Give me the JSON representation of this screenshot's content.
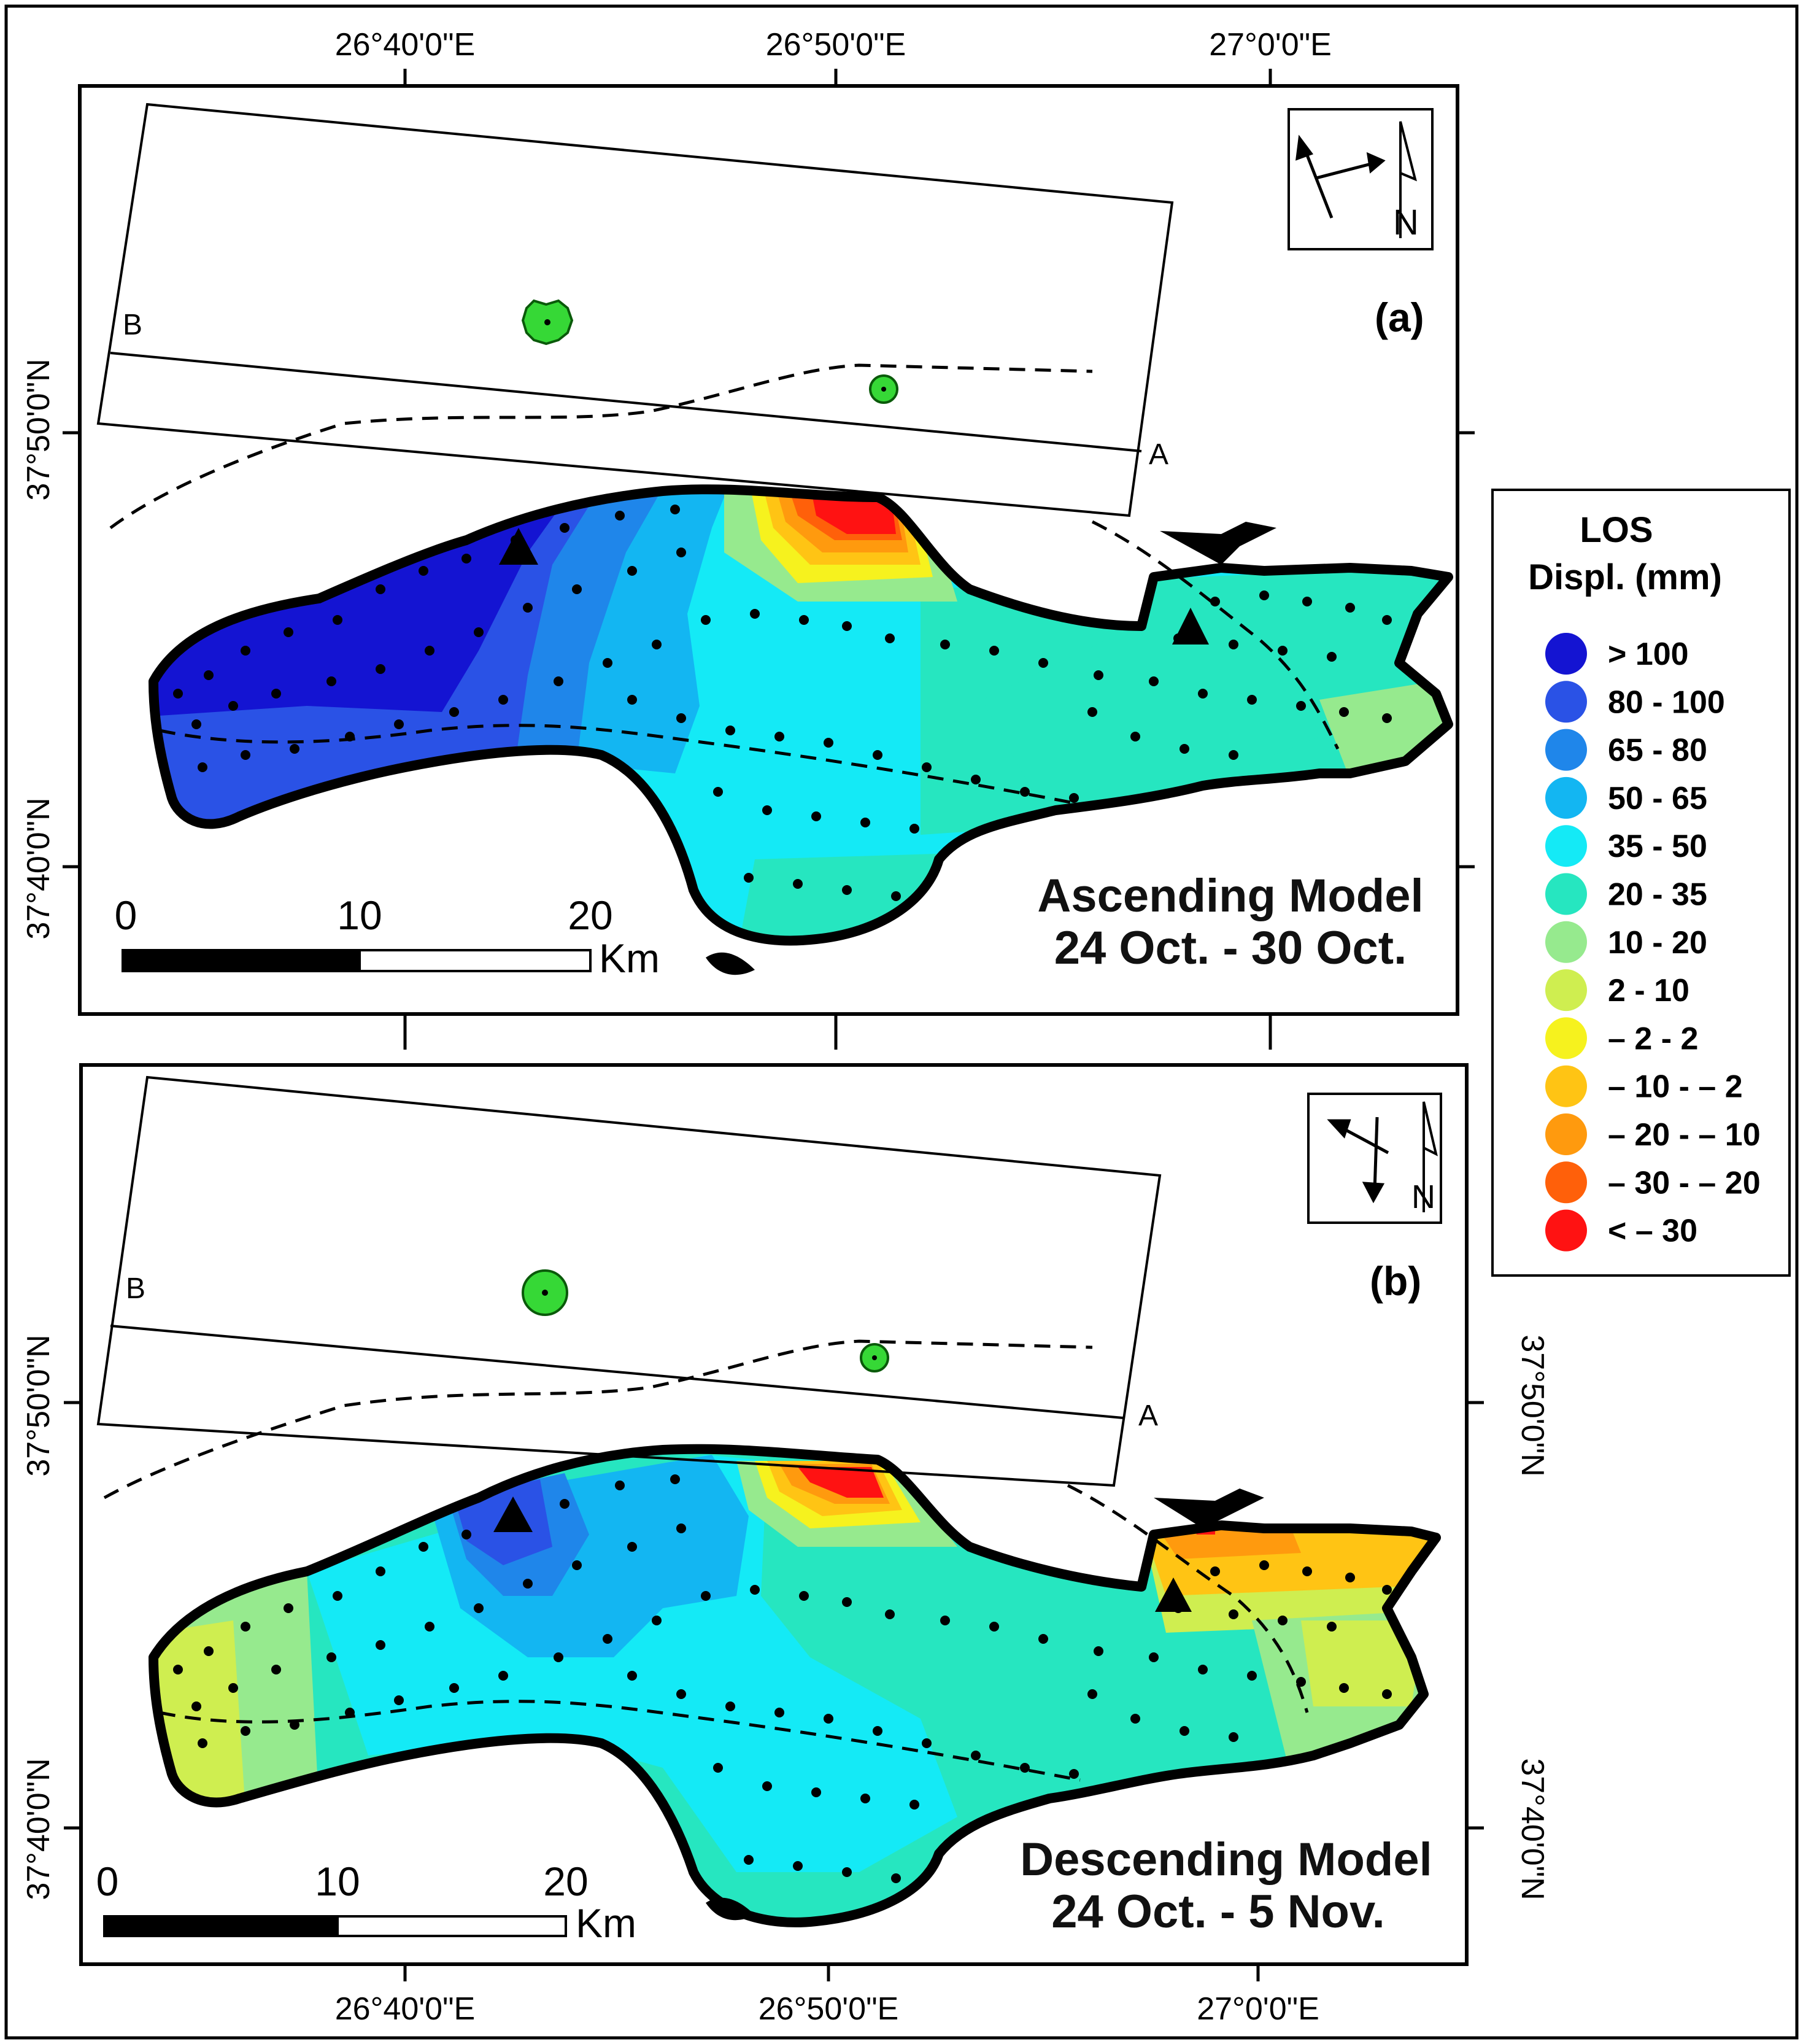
{
  "figure": {
    "longitudes_top": [
      "26°40'0\"E",
      "26°50'0\"E",
      "27°0'0\"E"
    ],
    "longitudes_bottom": [
      "26°40'0\"E",
      "26°50'0\"E",
      "27°0'0\"E"
    ],
    "latitudes": [
      "37°50'0\"N",
      "37°40'0\"N"
    ]
  },
  "panels": [
    {
      "label": "(a)",
      "title_line1": "Ascending Model",
      "title_line2": "24 Oct. - 30 Oct.",
      "profile_start": "B",
      "profile_end": "A",
      "scale": {
        "ticks": [
          "0",
          "10",
          "20"
        ],
        "unit": "Km"
      },
      "orientation_icon": "satellite-ascending-north-arrow-icon"
    },
    {
      "label": "(b)",
      "title_line1": "Descending Model",
      "title_line2": "24 Oct. - 5 Nov.",
      "profile_start": "B",
      "profile_end": "A",
      "scale": {
        "ticks": [
          "0",
          "10",
          "20"
        ],
        "unit": "Km"
      },
      "orientation_icon": "satellite-descending-north-arrow-icon"
    }
  ],
  "legend": {
    "title_line1": "LOS",
    "title_line2": "Displ. (mm)",
    "items": [
      {
        "label": "> 100",
        "color": "#1414d2"
      },
      {
        "label": "80 - 100",
        "color": "#2a52e6"
      },
      {
        "label": "65 - 80",
        "color": "#1f86ea"
      },
      {
        "label": "50 - 65",
        "color": "#13b6f2"
      },
      {
        "label": "35 - 50",
        "color": "#14eaf6"
      },
      {
        "label": "20 - 35",
        "color": "#26e6c0"
      },
      {
        "label": "10 - 20",
        "color": "#96ea8e"
      },
      {
        "label": "2 - 10",
        "color": "#cfee50"
      },
      {
        "label": "– 2 - 2",
        "color": "#f6f21e"
      },
      {
        "label": "– 10 - – 2",
        "color": "#ffc414"
      },
      {
        "label": "– 20 - – 10",
        "color": "#ff9a0e"
      },
      {
        "label": "– 30 - – 20",
        "color": "#ff600a"
      },
      {
        "label": "< – 30",
        "color": "#ff1212"
      }
    ]
  }
}
